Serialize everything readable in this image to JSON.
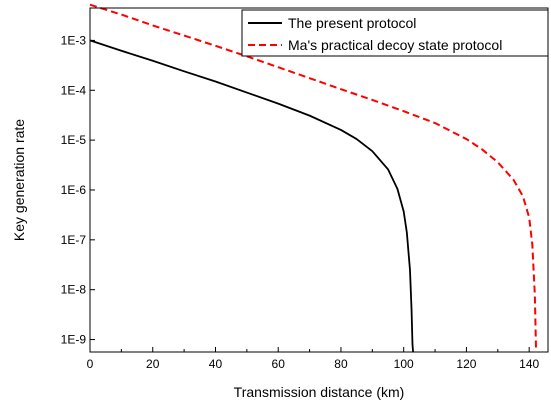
{
  "chart_data": {
    "type": "line",
    "xlabel": "Transmission distance (km)",
    "ylabel": "Key generation rate",
    "xlim": [
      0,
      146
    ],
    "ylim_log10": [
      -9.25,
      -2.35
    ],
    "y_scale": "log",
    "x_ticks": [
      0,
      20,
      40,
      60,
      80,
      100,
      120,
      140
    ],
    "x_tick_labels": [
      "0",
      "20",
      "40",
      "60",
      "80",
      "100",
      "120",
      "140"
    ],
    "y_ticks_log10": [
      -3,
      -4,
      -5,
      -6,
      -7,
      -8,
      -9
    ],
    "y_tick_labels": [
      "1E-3",
      "1E-4",
      "1E-5",
      "1E-6",
      "1E-7",
      "1E-8",
      "1E-9"
    ],
    "grid": false,
    "legend_position": "top-right",
    "series": [
      {
        "name": "The present protocol",
        "color": "#000000",
        "style": "solid",
        "x": [
          0,
          10,
          20,
          30,
          40,
          50,
          60,
          70,
          80,
          85,
          90,
          95,
          98,
          100,
          101,
          102,
          102.5,
          102.8,
          103.0
        ],
        "y": [
          0.001,
          0.00062,
          0.00039,
          0.00024,
          0.00015,
          9e-05,
          5.4e-05,
          3.1e-05,
          1.6e-05,
          1.05e-05,
          6e-06,
          2.6e-06,
          1.05e-06,
          3.7e-07,
          1.4e-07,
          2.5e-08,
          4e-09,
          8e-10,
          5.6e-10
        ]
      },
      {
        "name": "Ma's practical decoy state protocol",
        "color": "#ff0000",
        "style": "dashed",
        "x": [
          0,
          10,
          20,
          30,
          40,
          50,
          60,
          70,
          80,
          90,
          100,
          110,
          120,
          125,
          130,
          135,
          138,
          140,
          141,
          141.8,
          142.2
        ],
        "y": [
          0.0052,
          0.0033,
          0.002,
          0.00125,
          0.00078,
          0.00048,
          0.00029,
          0.000175,
          0.000105,
          6.4e-05,
          3.8e-05,
          2.2e-05,
          1.05e-05,
          6.5e-06,
          3.6e-06,
          1.6e-06,
          7.5e-07,
          2.8e-07,
          8e-08,
          8e-09,
          5.6e-10
        ]
      }
    ]
  }
}
